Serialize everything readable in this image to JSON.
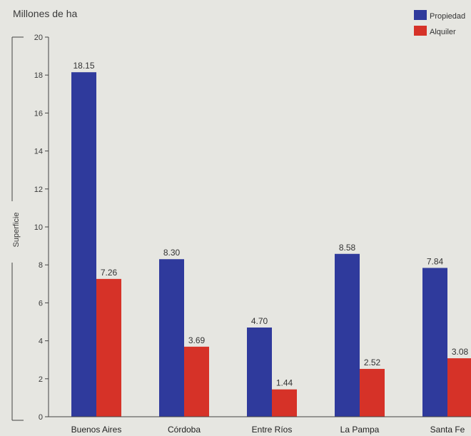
{
  "chart_data": {
    "type": "bar",
    "title": "Millones de ha",
    "ylabel": "Superficie",
    "xlabel": "",
    "ylim": [
      0,
      20
    ],
    "yticks": [
      0,
      2,
      4,
      6,
      8,
      10,
      12,
      14,
      16,
      18,
      20
    ],
    "categories": [
      "Buenos Aires",
      "Córdoba",
      "Entre Ríos",
      "La Pampa",
      "Santa Fe"
    ],
    "series": [
      {
        "name": "Propiedad",
        "color": "#2f3a9c",
        "values": [
          18.15,
          8.3,
          4.7,
          8.58,
          7.84
        ],
        "labels": [
          "18.15",
          "8.30",
          "4.70",
          "8.58",
          "7.84"
        ]
      },
      {
        "name": "Alquiler",
        "color": "#d63228",
        "values": [
          7.26,
          3.69,
          1.44,
          2.52,
          3.08
        ],
        "labels": [
          "7.26",
          "3.69",
          "1.44",
          "2.52",
          "3.08"
        ]
      }
    ],
    "legend_position": "top-right",
    "grid": false
  }
}
